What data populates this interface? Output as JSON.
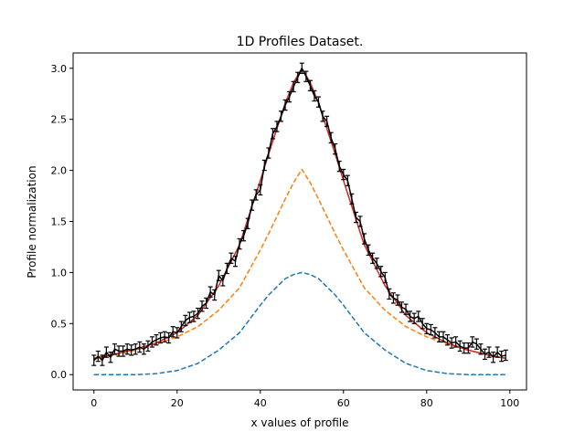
{
  "chart_data": {
    "type": "line",
    "title": "1D Profiles Dataset.",
    "xlabel": "x values of profile",
    "ylabel": "Profile normalization",
    "xlim": [
      -5,
      104
    ],
    "ylim": [
      -0.15,
      3.15
    ],
    "xticks": [
      0,
      20,
      40,
      60,
      80,
      100
    ],
    "yticks": [
      0.0,
      0.5,
      1.0,
      1.5,
      2.0,
      2.5,
      3.0
    ],
    "xtick_labels": [
      "0",
      "20",
      "40",
      "60",
      "80",
      "100"
    ],
    "ytick_labels": [
      "0.0",
      "0.5",
      "1.0",
      "1.5",
      "2.0",
      "2.5",
      "3.0"
    ],
    "grid": false,
    "series": [
      {
        "kind": "dashed-line",
        "color": "#1f77b4",
        "x": [
          0,
          5,
          10,
          15,
          20,
          25,
          30,
          35,
          40,
          42,
          44,
          46,
          48,
          50,
          52,
          54,
          56,
          58,
          60,
          65,
          70,
          75,
          80,
          85,
          90,
          95,
          99
        ],
        "y": [
          0.0,
          0.0,
          0.0,
          0.01,
          0.04,
          0.11,
          0.24,
          0.41,
          0.68,
          0.78,
          0.86,
          0.94,
          0.98,
          1.0,
          0.98,
          0.94,
          0.86,
          0.78,
          0.68,
          0.41,
          0.24,
          0.11,
          0.04,
          0.01,
          0.0,
          0.0,
          0.0
        ]
      },
      {
        "kind": "dashed-line",
        "color": "#ff7f0e",
        "x": [
          0,
          5,
          10,
          15,
          20,
          25,
          30,
          35,
          40,
          42,
          44,
          46,
          48,
          50,
          52,
          54,
          56,
          58,
          60,
          65,
          70,
          75,
          80,
          85,
          90,
          95,
          99
        ],
        "y": [
          0.15,
          0.19,
          0.24,
          0.3,
          0.37,
          0.47,
          0.63,
          0.85,
          1.22,
          1.38,
          1.55,
          1.72,
          1.88,
          2.01,
          1.88,
          1.72,
          1.55,
          1.38,
          1.22,
          0.85,
          0.63,
          0.47,
          0.37,
          0.3,
          0.24,
          0.19,
          0.16
        ]
      },
      {
        "kind": "solid-line",
        "color": "#d62728",
        "x": [
          0,
          5,
          10,
          15,
          20,
          25,
          30,
          35,
          40,
          42,
          44,
          46,
          48,
          50,
          52,
          54,
          56,
          58,
          60,
          65,
          70,
          75,
          80,
          85,
          90,
          95,
          99
        ],
        "y": [
          0.16,
          0.2,
          0.25,
          0.31,
          0.41,
          0.58,
          0.87,
          1.27,
          1.9,
          2.16,
          2.41,
          2.66,
          2.86,
          3.0,
          2.86,
          2.66,
          2.41,
          2.16,
          1.9,
          1.27,
          0.87,
          0.58,
          0.41,
          0.31,
          0.24,
          0.19,
          0.16
        ]
      },
      {
        "kind": "errorbar",
        "color": "#000000",
        "yerr": 0.05,
        "x": [
          0,
          1,
          2,
          3,
          4,
          5,
          6,
          7,
          8,
          9,
          10,
          11,
          12,
          13,
          14,
          15,
          16,
          17,
          18,
          19,
          20,
          21,
          22,
          23,
          24,
          25,
          26,
          27,
          28,
          29,
          30,
          31,
          32,
          33,
          34,
          35,
          36,
          37,
          38,
          39,
          40,
          41,
          42,
          43,
          44,
          45,
          46,
          47,
          48,
          49,
          50,
          51,
          52,
          53,
          54,
          55,
          56,
          57,
          58,
          59,
          60,
          61,
          62,
          63,
          64,
          65,
          66,
          67,
          68,
          69,
          70,
          71,
          72,
          73,
          74,
          75,
          76,
          77,
          78,
          79,
          80,
          81,
          82,
          83,
          84,
          85,
          86,
          87,
          88,
          89,
          90,
          91,
          92,
          93,
          94,
          95,
          96,
          97,
          98,
          99
        ],
        "y": [
          0.14,
          0.18,
          0.14,
          0.22,
          0.17,
          0.25,
          0.23,
          0.23,
          0.25,
          0.24,
          0.25,
          0.27,
          0.25,
          0.28,
          0.32,
          0.34,
          0.36,
          0.37,
          0.36,
          0.42,
          0.41,
          0.47,
          0.53,
          0.56,
          0.57,
          0.6,
          0.67,
          0.7,
          0.81,
          0.78,
          0.97,
          0.92,
          1.04,
          1.14,
          1.11,
          1.28,
          1.36,
          1.48,
          1.66,
          1.76,
          1.81,
          2.05,
          2.17,
          2.36,
          2.43,
          2.53,
          2.64,
          2.72,
          2.82,
          2.91,
          3.0,
          2.92,
          2.83,
          2.73,
          2.67,
          2.53,
          2.48,
          2.32,
          2.21,
          2.04,
          1.96,
          1.9,
          1.72,
          1.54,
          1.5,
          1.33,
          1.22,
          1.14,
          1.09,
          1.01,
          0.95,
          0.79,
          0.75,
          0.73,
          0.66,
          0.64,
          0.57,
          0.55,
          0.57,
          0.5,
          0.45,
          0.44,
          0.41,
          0.37,
          0.37,
          0.34,
          0.31,
          0.32,
          0.28,
          0.26,
          0.26,
          0.32,
          0.3,
          0.25,
          0.2,
          0.22,
          0.17,
          0.22,
          0.18,
          0.19
        ]
      }
    ]
  }
}
